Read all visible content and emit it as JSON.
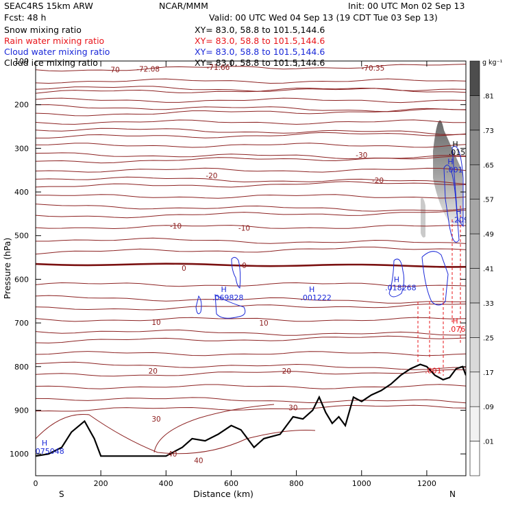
{
  "header": {
    "model": "SEAC4RS 15km ARW",
    "forecast": "Fcst:    48 h",
    "center": "NCAR/MMM",
    "init": "Init: 00 UTC Mon 02 Sep 13",
    "valid": "Valid: 00 UTC Wed 04 Sep 13 (19 CDT Tue 03 Sep 13)"
  },
  "fields": [
    {
      "label": "Snow mixing ratio",
      "xy": "XY=   83.0, 58.8 to 101.5,144.6",
      "color": "#000000"
    },
    {
      "label": "Rain water mixing ratio",
      "xy": "XY=  83.0, 58.8 to 101.5,144.6",
      "color": "#e8141a"
    },
    {
      "label": "Cloud water mixing ratio",
      "xy": "XY=  83.0, 58.8 to 101.5,144.6",
      "color": "#1a28d8"
    },
    {
      "label": "Cloud ice mixing ratio",
      "xy": "XY=   83.0, 58.8 to 101.5,144.6",
      "color": "#000000"
    }
  ],
  "chart_data": {
    "type": "cross-section",
    "xlabel": "Distance (km)",
    "ylabel": "Pressure (hPa)",
    "xlim": [
      0,
      1320
    ],
    "ylim": [
      1050,
      100
    ],
    "x_ticks": [
      "0",
      "200",
      "400",
      "600",
      "800",
      "1000",
      "1200"
    ],
    "y_ticks": [
      "100",
      "200",
      "300",
      "400",
      "500",
      "600",
      "700",
      "800",
      "900",
      "1000"
    ],
    "x_end_labels": {
      "left": "S",
      "right": "N"
    },
    "colorbar": {
      "unit": "g kg⁻¹",
      "levels": [
        ".01",
        ".09",
        ".17",
        ".25",
        ".33",
        ".41",
        ".49",
        ".57",
        ".65",
        ".73",
        ".81"
      ],
      "colors": [
        "#ffffff",
        "#f2f2f2",
        "#e6e6e6",
        "#d9d9d9",
        "#cccccc",
        "#bfbfbf",
        "#b3b3b3",
        "#a6a6a6",
        "#999999",
        "#8c8c8c",
        "#7a7a7a",
        "#4d4d4d"
      ]
    },
    "temperature_labels": [
      {
        "text": "-70",
        "x": 240,
        "p": 120
      },
      {
        "text": "-72.08",
        "x": 345,
        "p": 118
      },
      {
        "text": "-71.66",
        "x": 560,
        "p": 114
      },
      {
        "text": "-70.35",
        "x": 1035,
        "p": 116
      },
      {
        "text": "-30",
        "x": 1000,
        "p": 315
      },
      {
        "text": "-20",
        "x": 540,
        "p": 362
      },
      {
        "text": "-20",
        "x": 1050,
        "p": 373
      },
      {
        "text": "-10",
        "x": 430,
        "p": 478
      },
      {
        "text": "-10",
        "x": 640,
        "p": 482
      },
      {
        "text": "0",
        "x": 455,
        "p": 574
      },
      {
        "text": "0",
        "x": 640,
        "p": 568
      },
      {
        "text": "10",
        "x": 370,
        "p": 698
      },
      {
        "text": "10",
        "x": 700,
        "p": 700
      },
      {
        "text": "20",
        "x": 360,
        "p": 810
      },
      {
        "text": "20",
        "x": 770,
        "p": 810
      },
      {
        "text": "30",
        "x": 370,
        "p": 920
      },
      {
        "text": "30",
        "x": 790,
        "p": 894
      },
      {
        "text": "40",
        "x": 420,
        "p": 1000
      },
      {
        "text": "40",
        "x": 500,
        "p": 1015
      }
    ],
    "maxima_labels": [
      {
        "mark": "H",
        "value": ".0159",
        "x": 1300,
        "p": 315,
        "color": "#000000"
      },
      {
        "mark": "H",
        "value": ".001",
        "x": 1285,
        "p": 355,
        "color": "#1a28d8"
      },
      {
        "mark": "H",
        "value": ".2096",
        "x": 1310,
        "p": 470,
        "color": "#1a28d8"
      },
      {
        "mark": "H",
        "value": ".069828",
        "x": 590,
        "p": 648,
        "color": "#1a28d8"
      },
      {
        "mark": "H",
        "value": ".001222",
        "x": 860,
        "p": 648,
        "color": "#1a28d8"
      },
      {
        "mark": "H",
        "value": ".018268",
        "x": 1120,
        "p": 625,
        "color": "#1a28d8"
      },
      {
        "mark": "H",
        "value": ".0763",
        "x": 1300,
        "p": 720,
        "color": "#e8141a"
      },
      {
        "mark": "",
        "value": ".001",
        "x": 1220,
        "p": 815,
        "color": "#e8141a"
      },
      {
        "mark": "H",
        "value": ".075048",
        "x": 40,
        "p": 1000,
        "color": "#1a28d8"
      }
    ],
    "terrain": {
      "x": [
        0,
        40,
        80,
        110,
        150,
        180,
        200,
        250,
        300,
        350,
        400,
        450,
        480,
        520,
        560,
        600,
        630,
        670,
        700,
        750,
        790,
        820,
        850,
        870,
        890,
        910,
        930,
        950,
        975,
        1000,
        1030,
        1060,
        1090,
        1120,
        1150,
        1180,
        1200,
        1225,
        1250,
        1270,
        1290,
        1310,
        1320
      ],
      "p": [
        1005,
        1000,
        985,
        950,
        925,
        965,
        1005,
        1005,
        1005,
        1005,
        1005,
        985,
        965,
        970,
        955,
        935,
        945,
        985,
        965,
        955,
        915,
        920,
        900,
        870,
        905,
        930,
        915,
        935,
        870,
        880,
        865,
        855,
        840,
        820,
        805,
        795,
        800,
        820,
        830,
        825,
        805,
        800,
        820
      ]
    }
  }
}
